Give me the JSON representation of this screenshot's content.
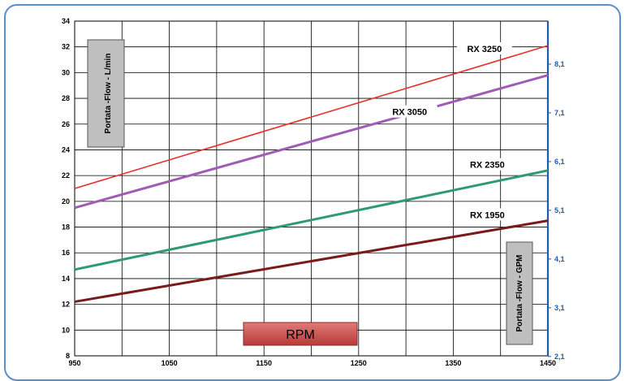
{
  "chart_data": {
    "type": "line",
    "xlabel": "RPM",
    "ylabel": "Portata -Flow - L/min",
    "ylabel_right": "Portata -Flow - GPM",
    "x_ticks": [
      950,
      1050,
      1150,
      1250,
      1350,
      1450
    ],
    "y_ticks": [
      8,
      10,
      12,
      14,
      16,
      18,
      20,
      22,
      24,
      26,
      28,
      30,
      32,
      34
    ],
    "y_ticks_right": [
      "2,1",
      "3,1",
      "4,1",
      "5,1",
      "6,1",
      "7,1",
      "8,1"
    ],
    "xlim": [
      950,
      1450
    ],
    "ylim": [
      8,
      34
    ],
    "grid": true,
    "series": [
      {
        "name": "RX 3250",
        "color": "#e8302a",
        "x": [
          950,
          1450
        ],
        "values": [
          21.0,
          32.1
        ]
      },
      {
        "name": "RX 3050",
        "color": "#a05bb5",
        "x": [
          950,
          1450
        ],
        "values": [
          19.5,
          29.8
        ]
      },
      {
        "name": "RX 2350",
        "color": "#2e9a6e",
        "x": [
          950,
          1450
        ],
        "values": [
          14.7,
          22.4
        ]
      },
      {
        "name": "RX 1950",
        "color": "#7a1a1a",
        "x": [
          950,
          1450
        ],
        "values": [
          12.2,
          18.5
        ]
      }
    ]
  }
}
